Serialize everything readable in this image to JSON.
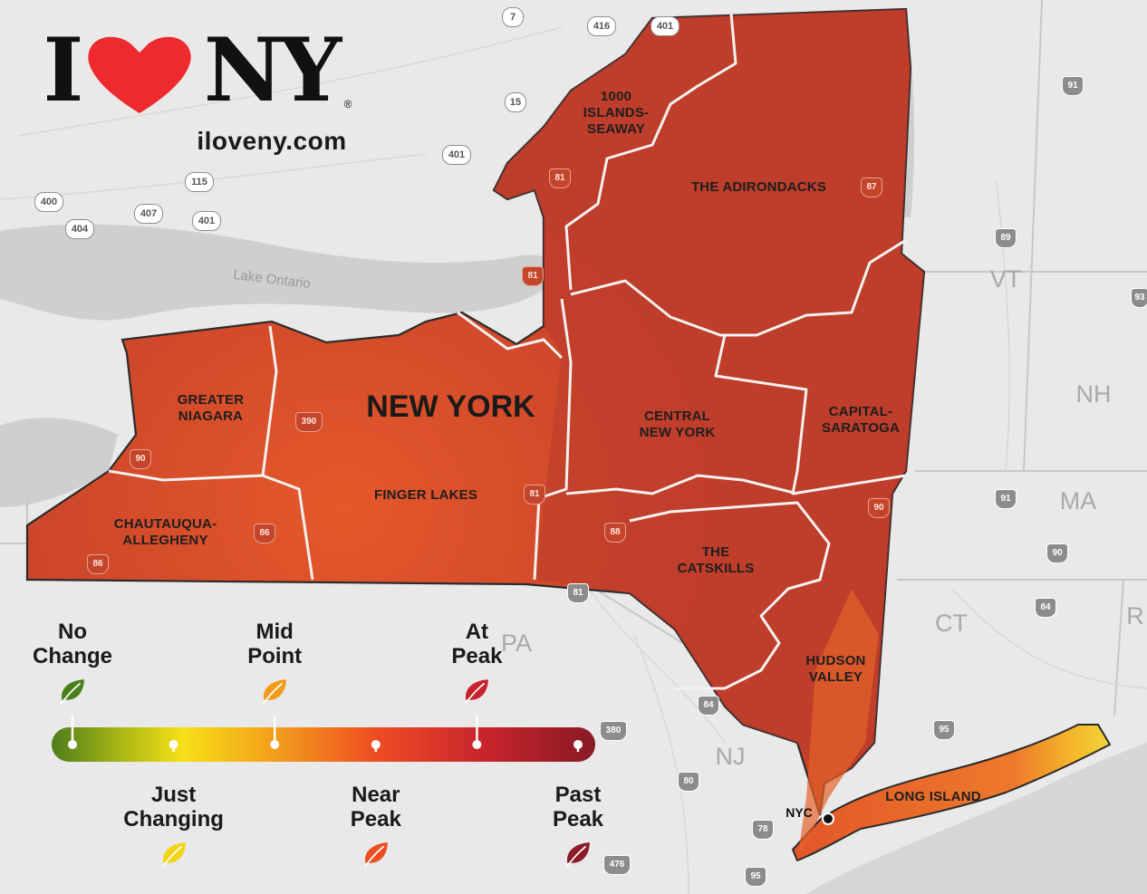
{
  "logo": {
    "text_left": "I",
    "text_right": "NY",
    "registered": "®",
    "url": "iloveny.com",
    "heart_color": "#ee2a2e"
  },
  "map": {
    "state_label": "NEW YORK",
    "water_label": "Lake Ontario",
    "nyc_label": "NYC",
    "regions": [
      {
        "id": "1000-islands",
        "label": "1000\nISLANDS-\nSEAWAY",
        "status": "Past Peak"
      },
      {
        "id": "adirondacks",
        "label": "THE ADIRONDACKS",
        "status": "Past Peak"
      },
      {
        "id": "greater-niagara",
        "label": "GREATER\nNIAGARA",
        "status": "Near Peak"
      },
      {
        "id": "finger-lakes",
        "label": "FINGER LAKES",
        "status": "Near Peak"
      },
      {
        "id": "central-ny",
        "label": "CENTRAL\nNEW YORK",
        "status": "At Peak"
      },
      {
        "id": "capital-saratoga",
        "label": "CAPITAL-\nSARATOGA",
        "status": "At Peak"
      },
      {
        "id": "chautauqua",
        "label": "CHAUTAUQUA-\nALLEGHENY",
        "status": "At Peak"
      },
      {
        "id": "catskills",
        "label": "THE\nCATSKILLS",
        "status": "At Peak"
      },
      {
        "id": "hudson-valley",
        "label": "HUDSON\nVALLEY",
        "status": "At Peak"
      },
      {
        "id": "long-island",
        "label": "LONG ISLAND",
        "status": "Near Peak"
      }
    ],
    "neighbor_states": [
      "VT",
      "NH",
      "MA",
      "CT",
      "NJ",
      "PA",
      "R"
    ],
    "highway_shields": [
      "7",
      "416",
      "401",
      "15",
      "401",
      "115",
      "400",
      "407",
      "401",
      "404",
      "81",
      "87",
      "81",
      "390",
      "90",
      "81",
      "88",
      "86",
      "86",
      "90",
      "81",
      "84",
      "91",
      "89",
      "91",
      "90",
      "84",
      "95",
      "380",
      "80",
      "78",
      "95",
      "476",
      "93"
    ]
  },
  "legend": {
    "stops": [
      {
        "label": "No\nChange",
        "color": "#4a7f1e",
        "position": "top"
      },
      {
        "label": "Just\nChanging",
        "color": "#f2d514",
        "position": "bottom"
      },
      {
        "label": "Mid\nPoint",
        "color": "#f29b1a",
        "position": "top"
      },
      {
        "label": "Near\nPeak",
        "color": "#ec4f23",
        "position": "bottom"
      },
      {
        "label": "At\nPeak",
        "color": "#c8222d",
        "position": "top"
      },
      {
        "label": "Past\nPeak",
        "color": "#8c1c26",
        "position": "bottom"
      }
    ]
  }
}
